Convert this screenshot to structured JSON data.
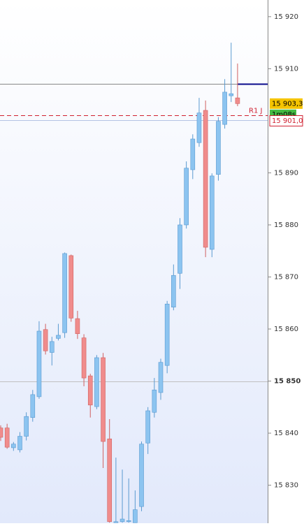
{
  "chart_data": {
    "type": "candlestick",
    "open": [
      15841.0,
      15841.0,
      15837.2,
      15836.8,
      15839.4,
      15843.0,
      15847.0,
      15859.9,
      15855.5,
      15858.2,
      15859.3,
      15874.1,
      15862.0,
      15858.3,
      15851.0,
      15845.1,
      15854.5,
      15838.9,
      15822.8,
      15823.0,
      15823.0,
      15822.8,
      15825.9,
      15838.1,
      15844.0,
      15847.8,
      15853.0,
      15864.2,
      15870.7,
      15880.0,
      15890.6,
      15895.8,
      15902.0,
      15875.3,
      15889.7,
      15899.3,
      15904.8,
      15904.4
    ],
    "high": [
      15841.5,
      15841.8,
      15838.3,
      15840.2,
      15844.0,
      15848.3,
      15861.5,
      15861.0,
      15858.5,
      15861.0,
      15874.7,
      15874.3,
      15863.5,
      15859.0,
      15851.4,
      15855.0,
      15855.4,
      15842.7,
      15835.3,
      15833.0,
      15831.3,
      15829.0,
      15838.4,
      15845.0,
      15850.6,
      15854.3,
      15865.4,
      15872.4,
      15881.3,
      15892.2,
      15897.4,
      15904.4,
      15903.9,
      15889.9,
      15900.7,
      15908.0,
      15915.0,
      15911.0
    ],
    "low": [
      15838.5,
      15837.0,
      15836.6,
      15836.3,
      15838.6,
      15842.2,
      15846.6,
      15855.1,
      15853.0,
      15857.8,
      15858.3,
      15861.4,
      15858.1,
      15849.0,
      15843.0,
      15844.6,
      15833.3,
      15822.8,
      15822.8,
      15822.8,
      15822.8,
      15822.8,
      15825.0,
      15836.0,
      15843.0,
      15846.4,
      15851.5,
      15863.6,
      15867.7,
      15879.3,
      15888.8,
      15895.0,
      15873.8,
      15873.8,
      15888.5,
      15898.5,
      15903.6,
      15902.8
    ],
    "close": [
      15839.2,
      15837.3,
      15837.9,
      15839.4,
      15843.2,
      15847.4,
      15859.6,
      15855.8,
      15857.6,
      15858.8,
      15874.5,
      15862.1,
      15859.1,
      15850.6,
      15845.4,
      15854.5,
      15838.4,
      15823.0,
      15823.0,
      15823.5,
      15823.2,
      15825.3,
      15837.9,
      15844.3,
      15848.3,
      15853.6,
      15864.8,
      15870.3,
      15880.0,
      15890.9,
      15896.5,
      15901.5,
      15875.7,
      15889.4,
      15899.9,
      15905.5,
      15905.2,
      15903.3
    ],
    "up_color": "#8cc4f0",
    "down_color": "#f08c8c",
    "ylim": [
      15822.7,
      15923.2
    ],
    "yticks": [
      {
        "value": 15920,
        "label": "15 920"
      },
      {
        "value": 15910,
        "label": "15 910"
      },
      {
        "value": 15890,
        "label": "15 890"
      },
      {
        "value": 15880,
        "label": "15 880"
      },
      {
        "value": 15870,
        "label": "15 870"
      },
      {
        "value": 15860,
        "label": "15 860"
      },
      {
        "value": 15850,
        "label": "15 850",
        "bold": true
      },
      {
        "value": 15840,
        "label": "15 840"
      },
      {
        "value": 15830,
        "label": "15 830"
      }
    ],
    "lines": [
      {
        "value": 15907.1,
        "color": "#888888",
        "start": "left"
      },
      {
        "value": 15907.1,
        "color": "#0a0a8c",
        "start": "last"
      },
      {
        "value": 15900.1,
        "color": "#b4c4e4",
        "start": "left"
      },
      {
        "value": 15850,
        "color": "#c0c0c0",
        "start": "left"
      }
    ],
    "pivot": {
      "name": "R1 J",
      "value": 15901.0,
      "value_label": "15 901,0",
      "color": "#d02030"
    },
    "last_price": {
      "value": 15903.3,
      "label": "15 903,3",
      "timer": "1m08s"
    }
  }
}
